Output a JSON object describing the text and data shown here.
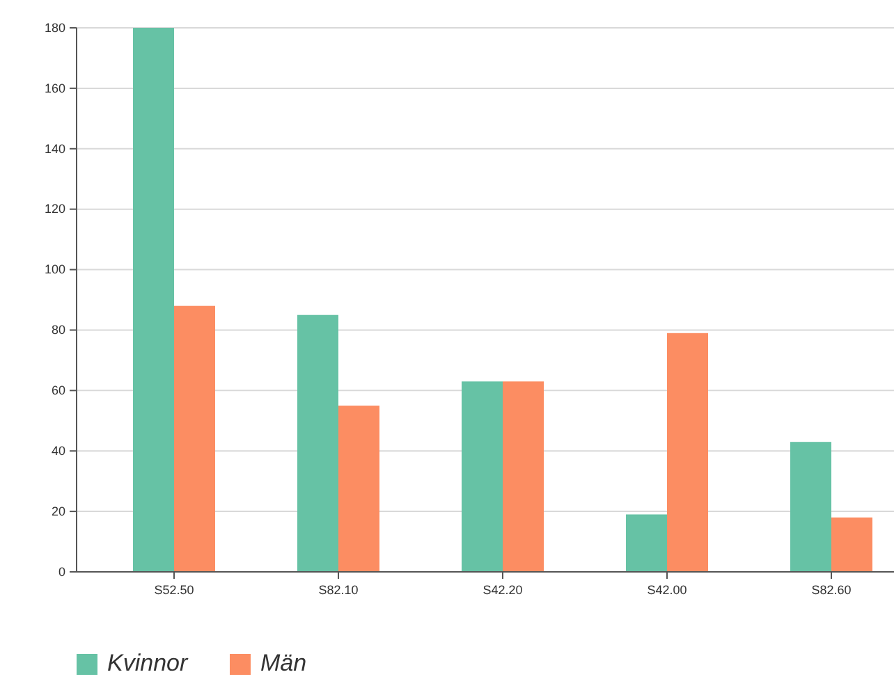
{
  "chart_data": {
    "type": "bar",
    "categories": [
      "S52.50",
      "S82.10",
      "S42.20",
      "S42.00",
      "S82.60"
    ],
    "series": [
      {
        "name": "Kvinnor",
        "color": "#66c2a5",
        "values": [
          180,
          85,
          63,
          19,
          43
        ]
      },
      {
        "name": "Män",
        "color": "#fc8d62",
        "values": [
          88,
          55,
          63,
          79,
          18
        ]
      }
    ],
    "ylim": [
      0,
      180
    ],
    "yticks": [
      0,
      20,
      40,
      60,
      80,
      100,
      120,
      140,
      160,
      180
    ],
    "grid": "y",
    "legend": "bottom left"
  }
}
